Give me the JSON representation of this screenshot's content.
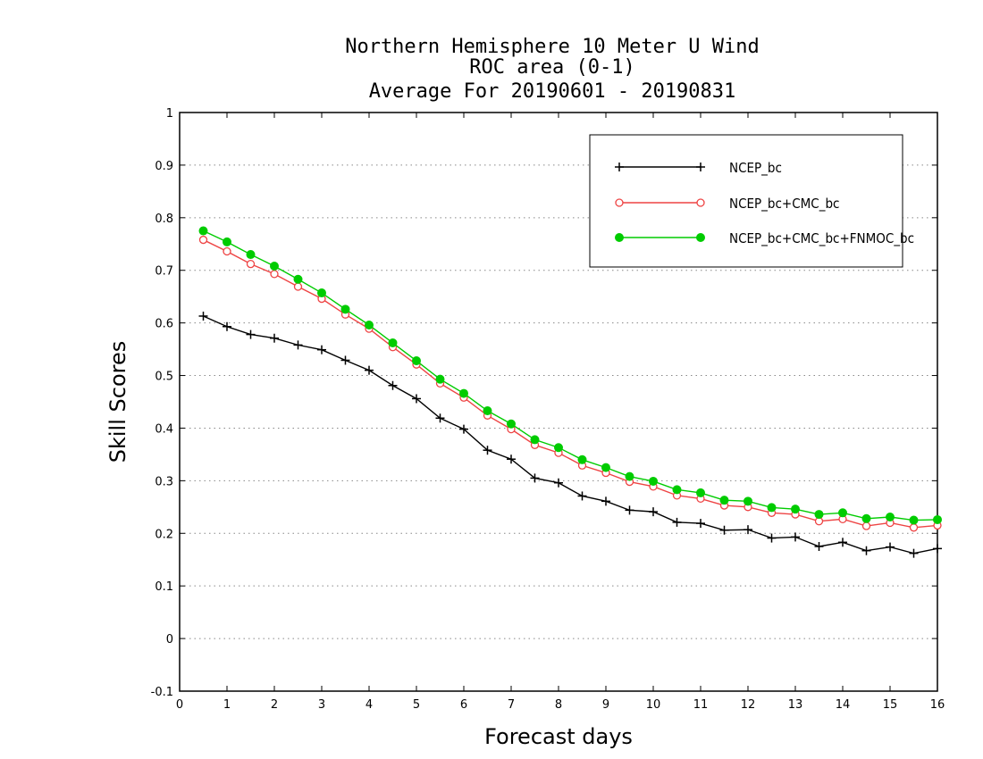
{
  "chart_data": {
    "type": "line",
    "title": [
      "Northern Hemisphere 10 Meter U Wind",
      "ROC area (0-1)",
      "Average For 20190601 - 20190831"
    ],
    "xlabel": "Forecast days",
    "ylabel": "Skill Scores",
    "xlim": [
      0,
      16
    ],
    "ylim": [
      -0.1,
      1
    ],
    "xticks": [
      0,
      1,
      2,
      3,
      4,
      5,
      6,
      7,
      8,
      9,
      10,
      11,
      12,
      13,
      14,
      15,
      16
    ],
    "yticks": [
      -0.1,
      0,
      0.1,
      0.2,
      0.3,
      0.4,
      0.5,
      0.6,
      0.7,
      0.8,
      0.9,
      1
    ],
    "ytick_labels": [
      "-0.1",
      "0",
      "0.1",
      "0.2",
      "0.3",
      "0.4",
      "0.5",
      "0.6",
      "0.7",
      "0.8",
      "0.9",
      "1"
    ],
    "grid": "horizontal dotted",
    "legend_position": "top-right",
    "x": [
      0.5,
      1,
      1.5,
      2,
      2.5,
      3,
      3.5,
      4,
      4.5,
      5,
      5.5,
      6,
      6.5,
      7,
      7.5,
      8,
      8.5,
      9,
      9.5,
      10,
      10.5,
      11,
      11.5,
      12,
      12.5,
      13,
      13.5,
      14,
      14.5,
      15,
      15.5,
      16
    ],
    "series": [
      {
        "name": "NCEP_bc",
        "color": "#000000",
        "marker": "plus",
        "values": [
          0.613,
          0.593,
          0.578,
          0.571,
          0.558,
          0.549,
          0.529,
          0.51,
          0.481,
          0.456,
          0.419,
          0.398,
          0.358,
          0.341,
          0.305,
          0.296,
          0.271,
          0.261,
          0.244,
          0.241,
          0.221,
          0.219,
          0.206,
          0.207,
          0.191,
          0.193,
          0.175,
          0.183,
          0.167,
          0.174,
          0.162,
          0.171
        ]
      },
      {
        "name": "NCEP_bc+CMC_bc",
        "color": "#ee4444",
        "marker": "open-circle",
        "values": [
          0.758,
          0.736,
          0.712,
          0.693,
          0.669,
          0.646,
          0.616,
          0.589,
          0.554,
          0.521,
          0.485,
          0.458,
          0.424,
          0.398,
          0.368,
          0.353,
          0.329,
          0.315,
          0.298,
          0.289,
          0.272,
          0.266,
          0.253,
          0.25,
          0.239,
          0.236,
          0.223,
          0.227,
          0.214,
          0.22,
          0.211,
          0.215
        ]
      },
      {
        "name": "NCEP_bc+CMC_bc+FNMOC_bc",
        "color": "#00cc00",
        "marker": "filled-circle",
        "values": [
          0.775,
          0.754,
          0.73,
          0.708,
          0.683,
          0.657,
          0.626,
          0.596,
          0.562,
          0.528,
          0.493,
          0.466,
          0.433,
          0.408,
          0.378,
          0.363,
          0.34,
          0.325,
          0.308,
          0.299,
          0.283,
          0.277,
          0.263,
          0.261,
          0.249,
          0.246,
          0.236,
          0.239,
          0.228,
          0.231,
          0.225,
          0.226
        ]
      }
    ]
  }
}
